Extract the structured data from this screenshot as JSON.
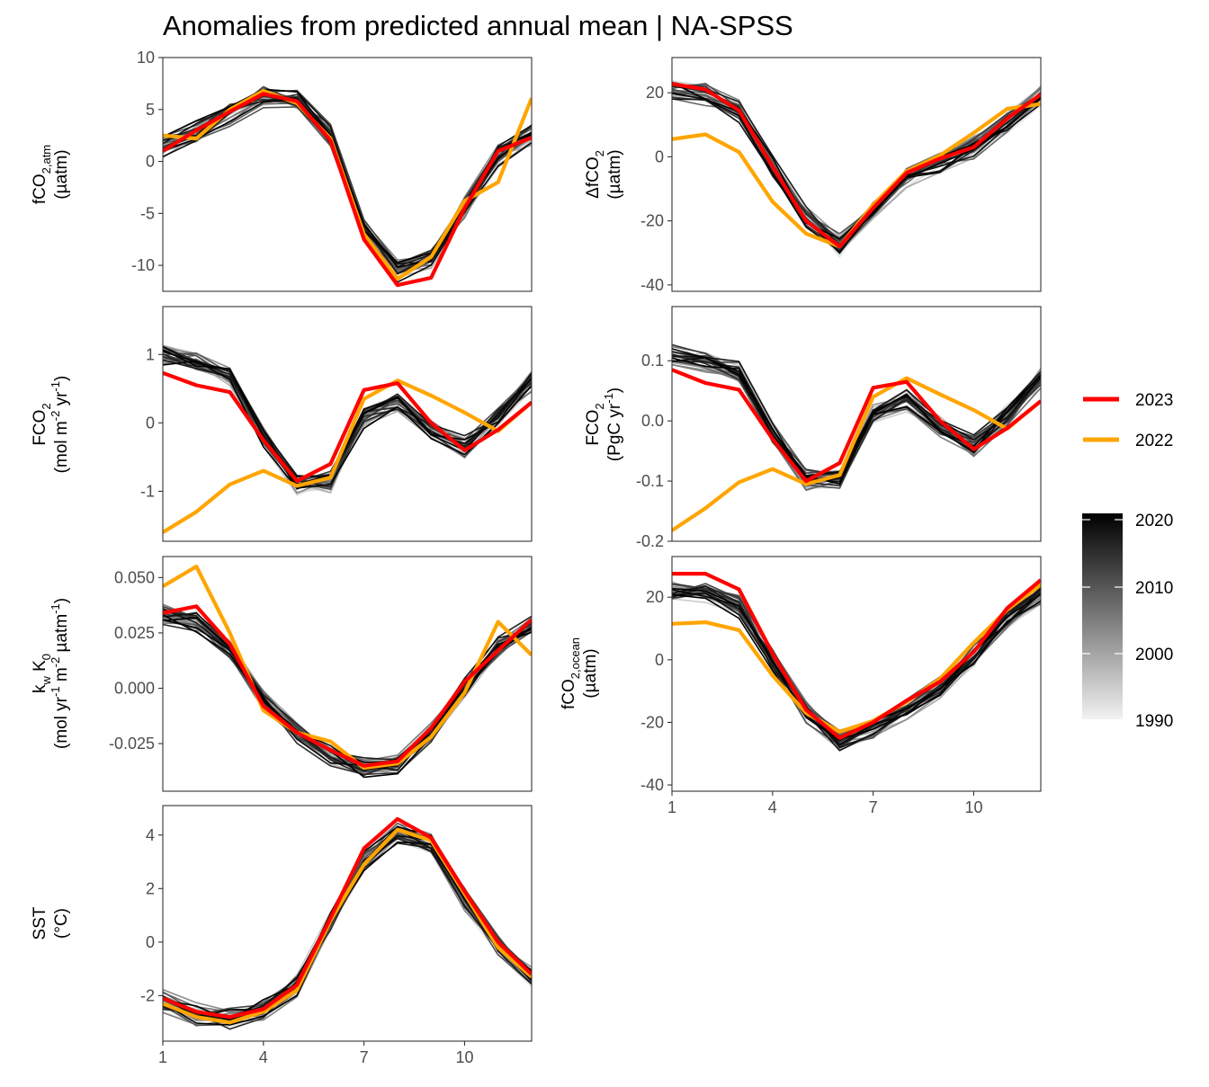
{
  "figure": {
    "title": "Anomalies from predicted annual mean | NA-SPSS"
  },
  "legend": {
    "highlight": [
      {
        "label": "2023",
        "color": "#ff0000"
      },
      {
        "label": "2022",
        "color": "#ffa500"
      }
    ],
    "gradient": {
      "from_year": 1990,
      "to_year": 2020,
      "from_color": "#f2f2f2",
      "to_color": "#000000",
      "labels": [
        "2020",
        "2010",
        "2000",
        "1990"
      ]
    }
  },
  "chart_data": [
    {
      "type": "line",
      "panel": "fco2-atm",
      "ylabel": "fCO2,atm (µatm)",
      "x": [
        1,
        2,
        3,
        4,
        5,
        6,
        7,
        8,
        9,
        10,
        11,
        12
      ],
      "xlim": [
        1,
        12
      ],
      "ylim": [
        -12.5,
        10
      ],
      "yticks": [
        10,
        5,
        0,
        -5,
        -10
      ],
      "xticks_shown": false,
      "series": [
        {
          "name": "2023",
          "values": [
            1.0,
            3.0,
            4.8,
            6.5,
            5.8,
            2.0,
            -7.5,
            -11.9,
            -11.2,
            -4.5,
            1.0,
            2.3
          ]
        },
        {
          "name": "2022",
          "values": [
            2.5,
            2.2,
            5.0,
            6.8,
            5.6,
            2.2,
            -7.0,
            -11.3,
            -9.2,
            -3.8,
            -2.0,
            6.1
          ]
        }
      ],
      "background_envelope": {
        "years": [
          1990,
          2021
        ],
        "values": [
          1.5,
          2.8,
          4.5,
          6.3,
          5.8,
          2.5,
          -6.5,
          -10.5,
          -9.5,
          -4.5,
          0.5,
          2.5
        ]
      }
    },
    {
      "type": "line",
      "panel": "delta-fco2",
      "ylabel": "ΔfCO2 (µatm)",
      "x": [
        1,
        2,
        3,
        4,
        5,
        6,
        7,
        8,
        9,
        10,
        11,
        12
      ],
      "xlim": [
        1,
        12
      ],
      "ylim": [
        -42,
        31
      ],
      "yticks": [
        20,
        0,
        -20,
        -40
      ],
      "xticks_shown": false,
      "series": [
        {
          "name": "2023",
          "values": [
            22.8,
            21.0,
            14.5,
            -3.0,
            -20.0,
            -28.0,
            -16.0,
            -5.0,
            -0.5,
            3.0,
            12.0,
            19.5
          ]
        },
        {
          "name": "2022",
          "values": [
            5.5,
            7.0,
            1.5,
            -14.0,
            -24.0,
            -28.0,
            -15.0,
            -4.5,
            0.5,
            7.5,
            15.0,
            16.5
          ]
        }
      ],
      "background_envelope": {
        "years": [
          1990,
          2021
        ],
        "values": [
          21.0,
          19.5,
          14.0,
          -3.0,
          -19.0,
          -27.5,
          -17.0,
          -6.5,
          -2.0,
          3.0,
          11.0,
          19.0
        ]
      }
    },
    {
      "type": "line",
      "panel": "fco2-flux-area",
      "ylabel": "FCO2 (mol m-2 yr-1)",
      "x": [
        1,
        2,
        3,
        4,
        5,
        6,
        7,
        8,
        9,
        10,
        11,
        12
      ],
      "xlim": [
        1,
        12
      ],
      "ylim": [
        -1.73,
        1.7
      ],
      "yticks": [
        1,
        0,
        -1
      ],
      "xticks_shown": false,
      "series": [
        {
          "name": "2023",
          "values": [
            0.73,
            0.55,
            0.45,
            -0.25,
            -0.85,
            -0.6,
            0.48,
            0.58,
            0.0,
            -0.4,
            -0.1,
            0.3
          ]
        },
        {
          "name": "2022",
          "values": [
            -1.6,
            -1.3,
            -0.9,
            -0.7,
            -0.92,
            -0.8,
            0.35,
            0.62,
            0.4,
            0.15,
            -0.12,
            0.3
          ]
        }
      ],
      "background_envelope": {
        "years": [
          1990,
          2021
        ],
        "values": [
          1.0,
          0.9,
          0.7,
          -0.2,
          -0.9,
          -0.85,
          0.1,
          0.3,
          -0.1,
          -0.35,
          0.1,
          0.6
        ]
      }
    },
    {
      "type": "line",
      "panel": "fco2-flux-total",
      "ylabel": "FCO2 (PgC yr-1)",
      "x": [
        1,
        2,
        3,
        4,
        5,
        6,
        7,
        8,
        9,
        10,
        11,
        12
      ],
      "xlim": [
        1,
        12
      ],
      "ylim": [
        -0.2,
        0.19
      ],
      "yticks": [
        0.1,
        0.0,
        -0.1,
        -0.2
      ],
      "xticks_shown": false,
      "series": [
        {
          "name": "2023",
          "values": [
            0.085,
            0.063,
            0.052,
            -0.03,
            -0.1,
            -0.07,
            0.055,
            0.065,
            0.0,
            -0.047,
            -0.012,
            0.033
          ]
        },
        {
          "name": "2022",
          "values": [
            -0.182,
            -0.145,
            -0.102,
            -0.08,
            -0.105,
            -0.09,
            0.04,
            0.071,
            0.044,
            0.018,
            -0.013,
            0.033
          ]
        }
      ],
      "background_envelope": {
        "years": [
          1990,
          2021
        ],
        "values": [
          0.11,
          0.1,
          0.08,
          -0.02,
          -0.1,
          -0.095,
          0.01,
          0.035,
          -0.01,
          -0.04,
          0.01,
          0.07
        ]
      }
    },
    {
      "type": "line",
      "panel": "kw-k0",
      "ylabel": "kw K0 (mol yr-1 m-2 µatm-1)",
      "x": [
        1,
        2,
        3,
        4,
        5,
        6,
        7,
        8,
        9,
        10,
        11,
        12
      ],
      "xlim": [
        1,
        12
      ],
      "ylim": [
        -0.0465,
        0.0595
      ],
      "yticks": [
        0.05,
        0.025,
        0.0,
        -0.025
      ],
      "xticks_shown": false,
      "series": [
        {
          "name": "2023",
          "values": [
            0.034,
            0.037,
            0.02,
            -0.008,
            -0.02,
            -0.028,
            -0.035,
            -0.033,
            -0.018,
            0.003,
            0.017,
            0.031
          ]
        },
        {
          "name": "2022",
          "values": [
            0.046,
            0.055,
            0.025,
            -0.01,
            -0.02,
            -0.024,
            -0.036,
            -0.034,
            -0.022,
            -0.002,
            0.03,
            0.015
          ]
        }
      ],
      "background_envelope": {
        "years": [
          1990,
          2021
        ],
        "values": [
          0.033,
          0.03,
          0.018,
          -0.005,
          -0.02,
          -0.03,
          -0.036,
          -0.034,
          -0.02,
          0.0,
          0.018,
          0.028
        ]
      }
    },
    {
      "type": "line",
      "panel": "fco2-ocean",
      "ylabel": "fCO2,ocean (µatm)",
      "x": [
        1,
        2,
        3,
        4,
        5,
        6,
        7,
        8,
        9,
        10,
        11,
        12
      ],
      "xlim": [
        1,
        12
      ],
      "ylim": [
        -42,
        33
      ],
      "yticks": [
        20,
        0,
        -20,
        -40
      ],
      "xticks": [
        1,
        4,
        7,
        10
      ],
      "xticks_shown": true,
      "series": [
        {
          "name": "2023",
          "values": [
            27.5,
            27.5,
            22.5,
            2.0,
            -16.0,
            -25.0,
            -20.0,
            -13.0,
            -7.0,
            2.5,
            16.5,
            25.5
          ]
        },
        {
          "name": "2022",
          "values": [
            11.5,
            12.0,
            9.5,
            -5.0,
            -17.0,
            -23.0,
            -19.5,
            -13.5,
            -6.0,
            5.5,
            16.0,
            24.0
          ]
        }
      ],
      "background_envelope": {
        "years": [
          1990,
          2021
        ],
        "values": [
          22.0,
          21.5,
          17.0,
          0.0,
          -17.0,
          -26.0,
          -22.0,
          -16.0,
          -9.0,
          1.0,
          13.0,
          21.0
        ]
      }
    },
    {
      "type": "line",
      "panel": "sst",
      "ylabel": "SST (°C)",
      "x": [
        1,
        2,
        3,
        4,
        5,
        6,
        7,
        8,
        9,
        10,
        11,
        12
      ],
      "xlim": [
        1,
        12
      ],
      "ylim": [
        -3.7,
        5.1
      ],
      "yticks": [
        4,
        2,
        0,
        -2
      ],
      "xticks": [
        1,
        4,
        7,
        10
      ],
      "xticks_shown": true,
      "series": [
        {
          "name": "2023",
          "values": [
            -2.1,
            -2.6,
            -2.8,
            -2.5,
            -1.6,
            0.9,
            3.5,
            4.6,
            3.9,
            1.9,
            0.0,
            -1.2
          ]
        },
        {
          "name": "2022",
          "values": [
            -2.3,
            -2.8,
            -3.0,
            -2.6,
            -1.8,
            0.8,
            2.9,
            4.2,
            3.8,
            1.8,
            -0.2,
            -1.3
          ]
        }
      ],
      "background_envelope": {
        "years": [
          1990,
          2021
        ],
        "values": [
          -2.2,
          -2.7,
          -2.9,
          -2.5,
          -1.6,
          0.7,
          3.0,
          4.1,
          3.6,
          1.6,
          -0.2,
          -1.3
        ]
      }
    }
  ]
}
